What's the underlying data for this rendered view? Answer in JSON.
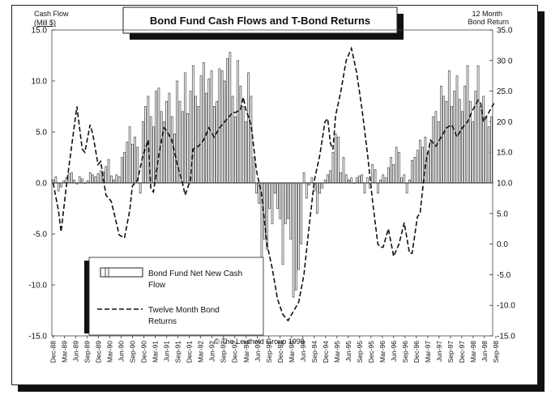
{
  "chart_data": {
    "type": "bar",
    "title": "Bond Fund Cash Flows and T-Bond Returns",
    "left_axis_title": "Cash Flow",
    "left_axis_unit": "(Mill $)",
    "right_axis_title_line1": "12 Month",
    "right_axis_title_line2": "Bond Return",
    "copyright": "© The Leuthold Group 1998",
    "left_axis": {
      "range": [
        -15,
        15
      ],
      "ticks": [
        15,
        10,
        5,
        0,
        -5,
        -10,
        -15
      ],
      "tick_labels": [
        "15.0",
        "10.0",
        "5.0",
        "0.0",
        "-5.0",
        "-10.0",
        "-15.0"
      ]
    },
    "right_axis": {
      "range": [
        -15,
        35
      ],
      "ticks": [
        35,
        30,
        25,
        20,
        15,
        10,
        5,
        0,
        -5,
        -10,
        -15
      ],
      "tick_labels": [
        "35.0",
        "30 0",
        "25.0",
        "20 0",
        "15.0",
        "10.0",
        "5.0",
        "0.0",
        "-5.0",
        "-10.0",
        "-15.0"
      ]
    },
    "x_labels": [
      "Dec-88",
      "Mar-89",
      "Jun-89",
      "Sep-89",
      "Dec-89",
      "Mar-90",
      "Jun-90",
      "Sep-90",
      "Dec-90",
      "Mar-91",
      "Jun-91",
      "Sep-91",
      "Dec-91",
      "Mar-92",
      "Jun-92",
      "Sep-92",
      "Dec-92",
      "Mar-93",
      "Jun-93",
      "Sep-93",
      "Dec-93",
      "Mar-94",
      "Jun-94",
      "Sep-94",
      "Dec-94",
      "Mar-95",
      "Jun-95",
      "Sep-95",
      "Dec-95",
      "Mar-96",
      "Jun-96",
      "Sep-96",
      "Dec-96",
      "Mar-97",
      "Jun-97",
      "Sep-97",
      "Dec-97",
      "Mar-98",
      "Jun-98",
      "Sep-98"
    ],
    "legend": [
      {
        "label_line1": "Bond Fund Net New Cash",
        "label_line2": "Flow"
      },
      {
        "label_line1": "Twelve Month Bond",
        "label_line2": "Returns"
      }
    ],
    "series": [
      {
        "name": "Bond Fund Net New Cash Flow",
        "axis": "left",
        "values": [
          0.3,
          0.6,
          -0.8,
          -0.4,
          0.2,
          0.5,
          0.9,
          1.0,
          0.3,
          -0.1,
          0.6,
          0.4,
          0.0,
          0.2,
          1.0,
          0.8,
          0.6,
          0.9,
          1.2,
          1.1,
          1.6,
          2.3,
          0.7,
          0.3,
          0.8,
          0.6,
          2.5,
          3.0,
          4.0,
          5.5,
          3.8,
          4.5,
          3.5,
          -1.0,
          6.0,
          7.5,
          8.5,
          6.5,
          5.5,
          9.0,
          9.3,
          7.0,
          6.0,
          8.0,
          8.8,
          6.5,
          4.8,
          10.0,
          8.0,
          7.0,
          10.8,
          6.8,
          9.0,
          11.5,
          8.5,
          7.5,
          10.5,
          11.8,
          8.8,
          10.2,
          11.0,
          7.5,
          8.0,
          11.2,
          11.0,
          10.0,
          12.2,
          12.8,
          8.5,
          6.5,
          12.0,
          9.5,
          7.5,
          6.0,
          10.8,
          8.5,
          2.5,
          -1.0,
          -2.0,
          -7.5,
          -5.5,
          -6.5,
          -2.5,
          -4.0,
          -1.0,
          -2.5,
          -3.5,
          -8.0,
          -4.0,
          -3.5,
          -5.5,
          -11.2,
          -10.5,
          -8.5,
          -6.0,
          1.0,
          -1.5,
          -0.2,
          0.5,
          -0.8,
          -3.0,
          -1.0,
          -0.5,
          0.3,
          0.8,
          1.2,
          3.0,
          4.8,
          4.5,
          1.0,
          2.5,
          0.8,
          0.3,
          0.5,
          0.0,
          0.5,
          0.7,
          0.8,
          -1.0,
          0.5,
          -0.5,
          1.8,
          1.3,
          -1.0,
          0.3,
          0.8,
          0.5,
          1.5,
          2.5,
          1.8,
          3.5,
          3.0,
          0.5,
          0.8,
          -1.0,
          0.3,
          2.2,
          2.5,
          3.2,
          4.2,
          3.5,
          4.5,
          3.0,
          4.0,
          6.5,
          7.0,
          6.0,
          9.5,
          8.5,
          8.0,
          11.0,
          7.5,
          9.0,
          10.5,
          8.2,
          7.0,
          9.5,
          11.5,
          8.0,
          6.0,
          9.0,
          11.5,
          7.5,
          8.5,
          6.5,
          5.5,
          6.5
        ]
      },
      {
        "name": "Twelve Month Bond Returns",
        "axis": "right",
        "points": [
          [
            0,
            10.0
          ],
          [
            2,
            5.5
          ],
          [
            3,
            2.0
          ],
          [
            5,
            9.5
          ],
          [
            7,
            16.0
          ],
          [
            9,
            22.5
          ],
          [
            11,
            15.5
          ],
          [
            12,
            15.0
          ],
          [
            14,
            19.5
          ],
          [
            15,
            18.0
          ],
          [
            17,
            13.0
          ],
          [
            18,
            13.5
          ],
          [
            20,
            8.0
          ],
          [
            22,
            7.0
          ],
          [
            25,
            1.5
          ],
          [
            27,
            1.0
          ],
          [
            29,
            5.5
          ],
          [
            30,
            9.5
          ],
          [
            32,
            10.5
          ],
          [
            34,
            14.5
          ],
          [
            36,
            17.0
          ],
          [
            37,
            9.0
          ],
          [
            38,
            8.5
          ],
          [
            40,
            14.5
          ],
          [
            42,
            19.0
          ],
          [
            43,
            18.5
          ],
          [
            45,
            17.0
          ],
          [
            47,
            13.0
          ],
          [
            49,
            10.0
          ],
          [
            50,
            8.0
          ],
          [
            52,
            10.5
          ],
          [
            53,
            15.5
          ],
          [
            55,
            16.0
          ],
          [
            57,
            17.0
          ],
          [
            59,
            19.0
          ],
          [
            61,
            17.5
          ],
          [
            63,
            19.0
          ],
          [
            65,
            20.0
          ],
          [
            66,
            20.5
          ],
          [
            68,
            21.5
          ],
          [
            69,
            21.5
          ],
          [
            71,
            22.0
          ],
          [
            72,
            24.0
          ],
          [
            73,
            22.0
          ],
          [
            75,
            19.5
          ],
          [
            77,
            12.0
          ],
          [
            79,
            8.0
          ],
          [
            81,
            0.0
          ],
          [
            83,
            -4.0
          ],
          [
            85,
            -9.0
          ],
          [
            87,
            -11.5
          ],
          [
            89,
            -12.5
          ],
          [
            91,
            -11.0
          ],
          [
            93,
            -9.5
          ],
          [
            95,
            -5.0
          ],
          [
            97,
            3.0
          ],
          [
            99,
            10.5
          ],
          [
            101,
            14.5
          ],
          [
            103,
            20.0
          ],
          [
            104,
            20.5
          ],
          [
            105,
            16.5
          ],
          [
            106,
            15.5
          ],
          [
            107,
            21.0
          ],
          [
            109,
            25.0
          ],
          [
            111,
            30.0
          ],
          [
            113,
            32.0
          ],
          [
            115,
            28.0
          ],
          [
            117,
            22.0
          ],
          [
            119,
            15.0
          ],
          [
            121,
            7.0
          ],
          [
            123,
            0.0
          ],
          [
            124,
            -0.5
          ],
          [
            125,
            -0.5
          ],
          [
            127,
            2.5
          ],
          [
            129,
            -2.0
          ],
          [
            131,
            0.0
          ],
          [
            133,
            3.5
          ],
          [
            135,
            -1.5
          ],
          [
            136,
            -1.5
          ],
          [
            138,
            4.5
          ],
          [
            139,
            5.0
          ],
          [
            141,
            13.0
          ],
          [
            143,
            17.0
          ],
          [
            145,
            16.0
          ],
          [
            147,
            17.5
          ],
          [
            149,
            19.0
          ],
          [
            151,
            19.5
          ],
          [
            153,
            17.5
          ],
          [
            155,
            19.0
          ],
          [
            157,
            20.0
          ],
          [
            159,
            22.0
          ],
          [
            161,
            23.5
          ],
          [
            162,
            23.0
          ],
          [
            163,
            20.0
          ],
          [
            165,
            21.5
          ],
          [
            167,
            23.0
          ]
        ]
      }
    ]
  }
}
